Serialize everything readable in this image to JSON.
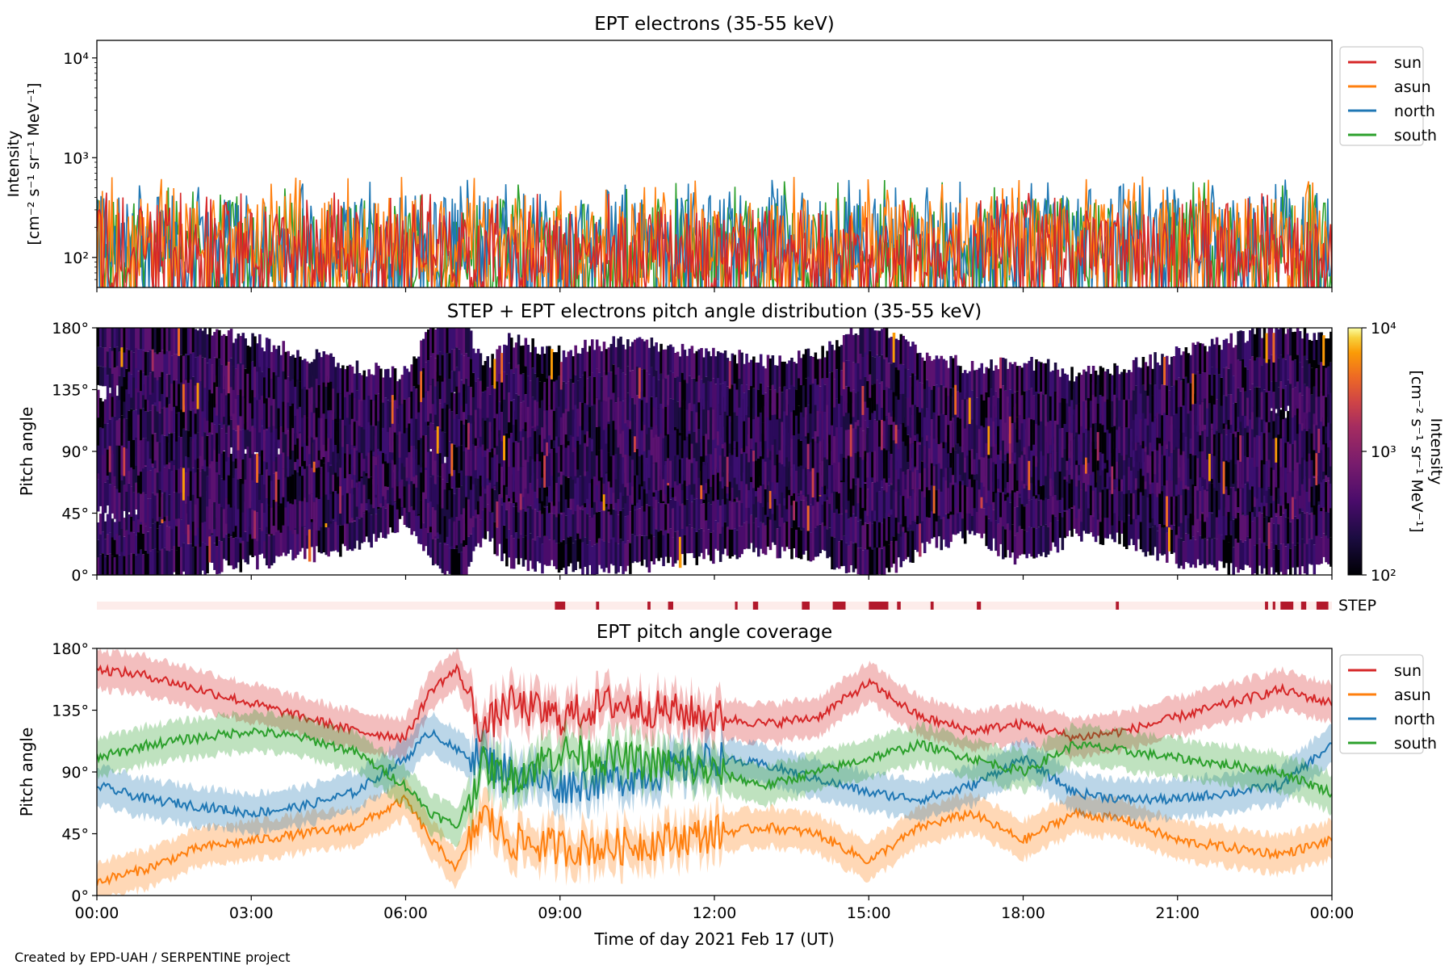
{
  "figure": {
    "footer": "Created by EPD-UAH / SERPENTINE project",
    "xlabel": "Time of day 2021 Feb 17 (UT)",
    "x_tick_labels": [
      "00:00",
      "03:00",
      "06:00",
      "09:00",
      "12:00",
      "15:00",
      "18:00",
      "21:00",
      "00:00"
    ],
    "colors": {
      "sun": "#d62728",
      "asun": "#ff7f0e",
      "north": "#1f77b4",
      "south": "#2ca02c",
      "step_mark": "#b2182b",
      "step_bg": "#fdecea"
    }
  },
  "chart_data": [
    {
      "id": "intensity",
      "type": "line",
      "title": "EPT electrons (35-55 keV)",
      "ylabel_line1": "Intensity",
      "ylabel_line2": "[cm⁻² s⁻¹ sr⁻¹ MeV⁻¹]",
      "yscale": "log",
      "ylim": [
        50,
        15000
      ],
      "y_ticks": [
        {
          "value": 100,
          "label": "10²"
        },
        {
          "value": 1000,
          "label": "10³"
        },
        {
          "value": 10000,
          "label": "10⁴"
        }
      ],
      "xlim_hours": [
        0,
        24
      ],
      "legend": {
        "position": "outside-right",
        "entries": [
          "sun",
          "asun",
          "north",
          "south"
        ]
      },
      "series": [
        {
          "name": "sun",
          "typical_range": [
            55,
            300
          ],
          "peak_max": 450
        },
        {
          "name": "asun",
          "typical_range": [
            55,
            400
          ],
          "peak_max": 650
        },
        {
          "name": "north",
          "typical_range": [
            60,
            420
          ],
          "peak_max": 620
        },
        {
          "name": "south",
          "typical_range": [
            55,
            380
          ],
          "peak_max": 600
        }
      ]
    },
    {
      "id": "pad",
      "type": "heatmap",
      "title": "STEP + EPT electrons pitch angle distribution (35-55 keV)",
      "ylabel": "Pitch angle",
      "y_ticks": [
        "0°",
        "45°",
        "90°",
        "135°",
        "180°"
      ],
      "ylim": [
        0,
        180
      ],
      "xlim_hours": [
        0,
        24
      ],
      "colorbar": {
        "label_line1": "Intensity",
        "label_line2": "[cm⁻² s⁻¹ sr⁻¹ MeV⁻¹]",
        "scale": "log",
        "range": [
          100,
          10000
        ],
        "ticks": [
          "10²",
          "10³",
          "10⁴"
        ],
        "colormap": "inferno"
      }
    },
    {
      "id": "step",
      "type": "bar",
      "label": "STEP",
      "xlim_hours": [
        0,
        24
      ],
      "coverage_intervals_hours": [
        [
          8.9,
          9.1
        ],
        [
          9.7,
          9.76
        ],
        [
          10.7,
          10.76
        ],
        [
          11.1,
          11.2
        ],
        [
          12.4,
          12.45
        ],
        [
          12.75,
          12.85
        ],
        [
          13.7,
          13.85
        ],
        [
          14.3,
          14.55
        ],
        [
          15.0,
          15.38
        ],
        [
          15.55,
          15.62
        ],
        [
          16.2,
          16.26
        ],
        [
          17.1,
          17.18
        ],
        [
          19.8,
          19.86
        ],
        [
          22.7,
          22.76
        ],
        [
          22.85,
          22.9
        ],
        [
          23.0,
          23.25
        ],
        [
          23.4,
          23.5
        ],
        [
          23.7,
          23.93
        ]
      ]
    },
    {
      "id": "coverage",
      "type": "line",
      "title": "EPT pitch angle coverage",
      "ylabel": "Pitch angle",
      "y_ticks": [
        "0°",
        "45°",
        "90°",
        "135°",
        "180°"
      ],
      "ylim": [
        0,
        180
      ],
      "xlim_hours": [
        0,
        24
      ],
      "legend": {
        "position": "outside-right",
        "entries": [
          "sun",
          "asun",
          "north",
          "south"
        ]
      },
      "x_hours": [
        0,
        1,
        2,
        3,
        4,
        5,
        6,
        6.5,
        7,
        7.5,
        8,
        9,
        10,
        11,
        12,
        13,
        14,
        15,
        16,
        17,
        18,
        19,
        20,
        21,
        22,
        23,
        24
      ],
      "series": [
        {
          "name": "sun",
          "values": [
            165,
            160,
            150,
            140,
            130,
            120,
            115,
            150,
            165,
            120,
            140,
            130,
            140,
            135,
            130,
            125,
            130,
            155,
            130,
            120,
            125,
            115,
            120,
            130,
            140,
            150,
            140
          ]
        },
        {
          "name": "asun",
          "values": [
            10,
            20,
            35,
            40,
            45,
            50,
            70,
            40,
            20,
            60,
            40,
            35,
            35,
            40,
            45,
            50,
            45,
            25,
            50,
            60,
            40,
            60,
            55,
            40,
            35,
            30,
            40
          ]
        },
        {
          "name": "north",
          "values": [
            80,
            70,
            65,
            60,
            65,
            75,
            100,
            120,
            105,
            100,
            90,
            80,
            85,
            90,
            100,
            95,
            85,
            75,
            70,
            80,
            100,
            75,
            70,
            70,
            75,
            80,
            110
          ]
        },
        {
          "name": "south",
          "values": [
            100,
            110,
            115,
            120,
            115,
            105,
            80,
            60,
            50,
            95,
            85,
            105,
            100,
            95,
            90,
            80,
            90,
            100,
            110,
            100,
            90,
            110,
            105,
            100,
            95,
            90,
            75
          ]
        }
      ]
    }
  ]
}
